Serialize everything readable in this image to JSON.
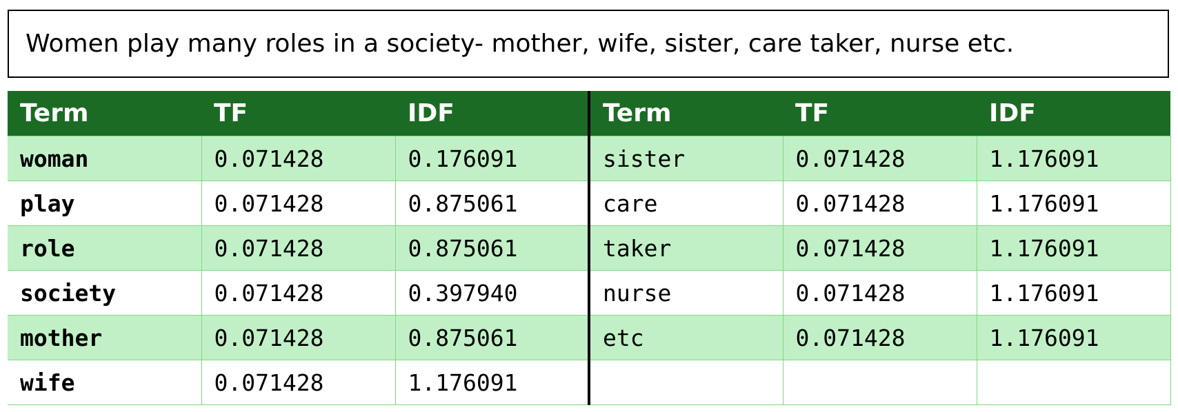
{
  "sentence": "Women play many roles in a society- mother, wife, sister, care taker, nurse etc.",
  "table": {
    "headers": [
      "Term",
      "TF",
      "IDF",
      "Term",
      "TF",
      "IDF"
    ],
    "rows": [
      [
        "woman",
        "0.071428",
        "0.176091",
        "sister",
        "0.071428",
        "1.176091"
      ],
      [
        "play",
        "0.071428",
        "0.875061",
        "care",
        "0.071428",
        "1.176091"
      ],
      [
        "role",
        "0.071428",
        "0.875061",
        "taker",
        "0.071428",
        "1.176091"
      ],
      [
        "society",
        "0.071428",
        "0.397940",
        "nurse",
        "0.071428",
        "1.176091"
      ],
      [
        "mother",
        "0.071428",
        "0.875061",
        "etc",
        "0.071428",
        "1.176091"
      ],
      [
        "wife",
        "0.071428",
        "1.176091",
        "",
        "",
        ""
      ]
    ]
  },
  "colors": {
    "header_bg": "#1c6b24",
    "header_text": "#ffffff",
    "shaded_row_bg": "#c1f0c6",
    "cell_border": "#7dd97f"
  }
}
